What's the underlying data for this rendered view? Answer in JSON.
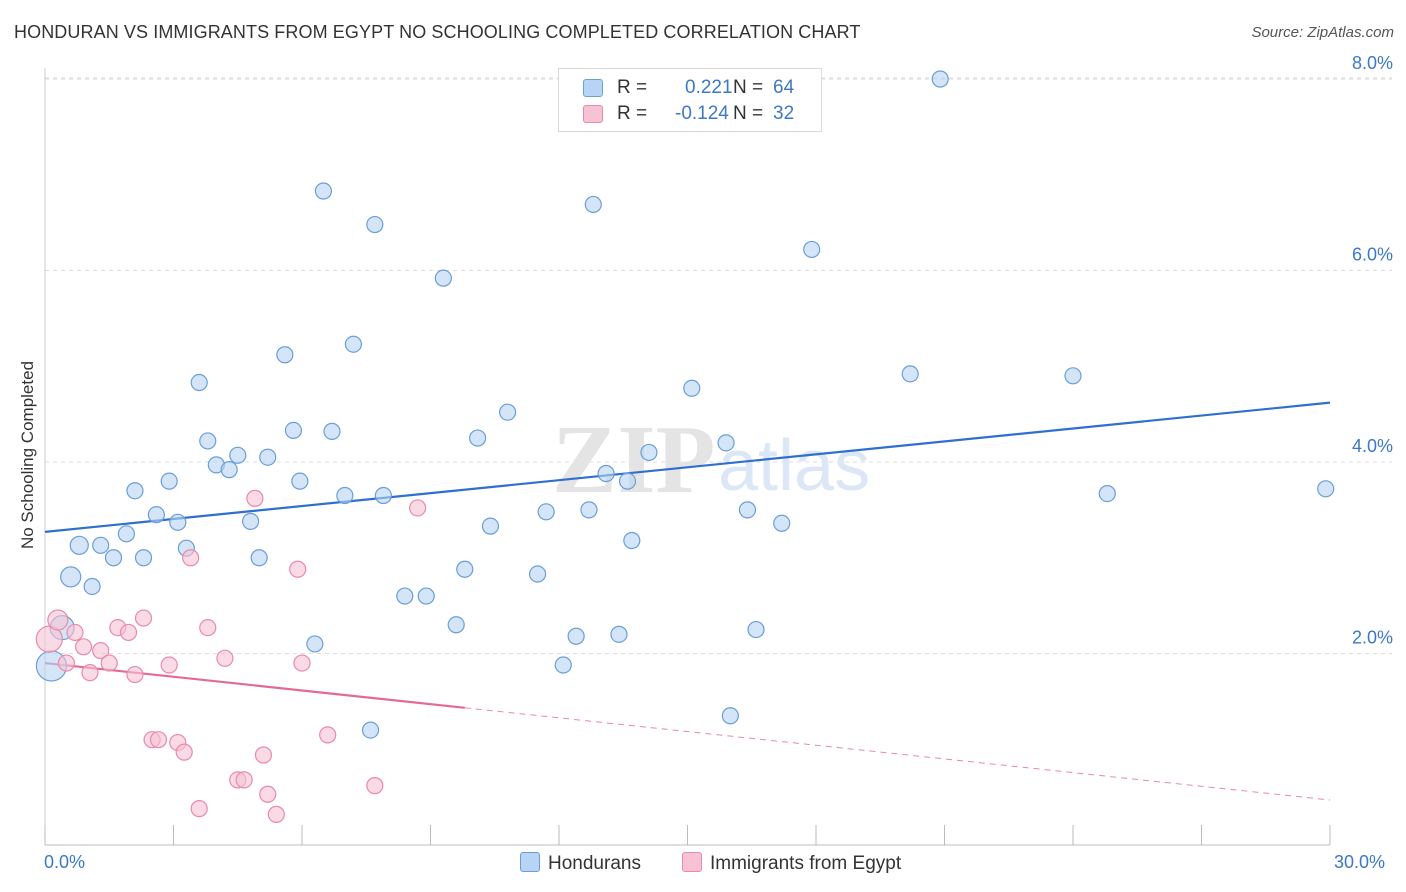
{
  "header": {
    "title": "HONDURAN VS IMMIGRANTS FROM EGYPT NO SCHOOLING COMPLETED CORRELATION CHART",
    "source": "Source: ZipAtlas.com"
  },
  "legend_top": {
    "hondurans": {
      "r_label": "R =",
      "r_value": "0.221",
      "n_label": "N =",
      "n_value": "64"
    },
    "egypt": {
      "r_label": "R =",
      "r_value": "-0.124",
      "n_label": "N =",
      "n_value": "32"
    }
  },
  "colors": {
    "blue_fill": "#b8d4f4",
    "blue_stroke": "#6a9ed8",
    "blue_line": "#2f6fd0",
    "pink_fill": "#f7c3d4",
    "pink_stroke": "#e88aa8",
    "pink_line": "#e36a96",
    "axis_text": "#3c78c8",
    "grid": "#dddddd"
  },
  "watermark": {
    "zip": "ZIP",
    "atlas": "atlas"
  },
  "chart_data": {
    "type": "scatter",
    "title": "HONDURAN VS IMMIGRANTS FROM EGYPT NO SCHOOLING COMPLETED CORRELATION CHART",
    "xlabel": "",
    "ylabel": "No Schooling Completed",
    "xlim": [
      0,
      30
    ],
    "ylim": [
      0,
      8.3
    ],
    "x_tick_labels": [
      "0.0%",
      "30.0%"
    ],
    "y_ticks": [
      2,
      4,
      6,
      8
    ],
    "y_tick_labels": [
      "2.0%",
      "4.0%",
      "6.0%",
      "8.0%"
    ],
    "grid": true,
    "series": [
      {
        "name": "Hondurans",
        "r": 0.221,
        "n": 64,
        "trend": {
          "x": [
            0,
            30
          ],
          "y": [
            3.27,
            4.62
          ],
          "style": "solid"
        },
        "points": [
          {
            "x": 0.15,
            "y": 1.87,
            "s": 15
          },
          {
            "x": 0.4,
            "y": 2.27,
            "s": 12
          },
          {
            "x": 0.6,
            "y": 2.8,
            "s": 10
          },
          {
            "x": 0.8,
            "y": 3.13,
            "s": 9
          },
          {
            "x": 1.1,
            "y": 2.7,
            "s": 8
          },
          {
            "x": 1.3,
            "y": 3.13,
            "s": 8
          },
          {
            "x": 1.6,
            "y": 3.0,
            "s": 8
          },
          {
            "x": 1.9,
            "y": 3.25,
            "s": 8
          },
          {
            "x": 2.1,
            "y": 3.7,
            "s": 8
          },
          {
            "x": 2.3,
            "y": 3.0,
            "s": 8
          },
          {
            "x": 2.6,
            "y": 3.45,
            "s": 8
          },
          {
            "x": 2.9,
            "y": 3.8,
            "s": 8
          },
          {
            "x": 3.1,
            "y": 3.37,
            "s": 8
          },
          {
            "x": 3.3,
            "y": 3.1,
            "s": 8
          },
          {
            "x": 3.6,
            "y": 4.83,
            "s": 8
          },
          {
            "x": 3.8,
            "y": 4.22,
            "s": 8
          },
          {
            "x": 4.0,
            "y": 3.97,
            "s": 8
          },
          {
            "x": 4.3,
            "y": 3.92,
            "s": 8
          },
          {
            "x": 4.5,
            "y": 4.07,
            "s": 8
          },
          {
            "x": 4.8,
            "y": 3.38,
            "s": 8
          },
          {
            "x": 5.0,
            "y": 3.0,
            "s": 8
          },
          {
            "x": 5.2,
            "y": 4.05,
            "s": 8
          },
          {
            "x": 5.6,
            "y": 5.12,
            "s": 8
          },
          {
            "x": 5.8,
            "y": 4.33,
            "s": 8
          },
          {
            "x": 5.95,
            "y": 3.8,
            "s": 8
          },
          {
            "x": 6.3,
            "y": 2.1,
            "s": 8
          },
          {
            "x": 6.5,
            "y": 6.83,
            "s": 8
          },
          {
            "x": 6.7,
            "y": 4.32,
            "s": 8
          },
          {
            "x": 7.0,
            "y": 3.65,
            "s": 8
          },
          {
            "x": 7.2,
            "y": 5.23,
            "s": 8
          },
          {
            "x": 7.6,
            "y": 1.2,
            "s": 8
          },
          {
            "x": 7.7,
            "y": 6.48,
            "s": 8
          },
          {
            "x": 7.9,
            "y": 3.65,
            "s": 8
          },
          {
            "x": 8.4,
            "y": 2.6,
            "s": 8
          },
          {
            "x": 8.9,
            "y": 2.6,
            "s": 8
          },
          {
            "x": 9.3,
            "y": 5.92,
            "s": 8
          },
          {
            "x": 9.6,
            "y": 2.3,
            "s": 8
          },
          {
            "x": 9.8,
            "y": 2.88,
            "s": 8
          },
          {
            "x": 10.1,
            "y": 4.25,
            "s": 8
          },
          {
            "x": 10.4,
            "y": 3.33,
            "s": 8
          },
          {
            "x": 10.8,
            "y": 4.52,
            "s": 8
          },
          {
            "x": 11.5,
            "y": 2.83,
            "s": 8
          },
          {
            "x": 11.7,
            "y": 3.48,
            "s": 8
          },
          {
            "x": 12.1,
            "y": 1.88,
            "s": 8
          },
          {
            "x": 12.4,
            "y": 2.18,
            "s": 8
          },
          {
            "x": 12.7,
            "y": 3.5,
            "s": 8
          },
          {
            "x": 12.8,
            "y": 6.69,
            "s": 8
          },
          {
            "x": 13.1,
            "y": 3.88,
            "s": 8
          },
          {
            "x": 13.4,
            "y": 2.2,
            "s": 8
          },
          {
            "x": 13.6,
            "y": 3.8,
            "s": 8
          },
          {
            "x": 13.7,
            "y": 3.18,
            "s": 8
          },
          {
            "x": 14.1,
            "y": 4.1,
            "s": 8
          },
          {
            "x": 15.1,
            "y": 4.77,
            "s": 8
          },
          {
            "x": 15.9,
            "y": 4.2,
            "s": 8
          },
          {
            "x": 16.0,
            "y": 1.35,
            "s": 8
          },
          {
            "x": 16.4,
            "y": 3.5,
            "s": 8
          },
          {
            "x": 16.6,
            "y": 2.25,
            "s": 8
          },
          {
            "x": 17.2,
            "y": 3.36,
            "s": 8
          },
          {
            "x": 17.9,
            "y": 6.22,
            "s": 8
          },
          {
            "x": 20.2,
            "y": 4.92,
            "s": 8
          },
          {
            "x": 20.9,
            "y": 8.0,
            "s": 8
          },
          {
            "x": 24.0,
            "y": 4.9,
            "s": 8
          },
          {
            "x": 24.8,
            "y": 3.67,
            "s": 8
          },
          {
            "x": 29.9,
            "y": 3.72,
            "s": 8
          }
        ]
      },
      {
        "name": "Immigrants from Egypt",
        "r": -0.124,
        "n": 32,
        "trend": {
          "x": [
            0,
            30
          ],
          "y": [
            1.9,
            0.47
          ],
          "solid_until_x": 9.8
        },
        "points": [
          {
            "x": 0.1,
            "y": 2.15,
            "s": 13
          },
          {
            "x": 0.3,
            "y": 2.35,
            "s": 10
          },
          {
            "x": 0.5,
            "y": 1.9,
            "s": 8
          },
          {
            "x": 0.7,
            "y": 2.22,
            "s": 8
          },
          {
            "x": 0.9,
            "y": 2.07,
            "s": 8
          },
          {
            "x": 1.05,
            "y": 1.8,
            "s": 8
          },
          {
            "x": 1.3,
            "y": 2.03,
            "s": 8
          },
          {
            "x": 1.5,
            "y": 1.9,
            "s": 8
          },
          {
            "x": 1.7,
            "y": 2.27,
            "s": 8
          },
          {
            "x": 1.95,
            "y": 2.22,
            "s": 8
          },
          {
            "x": 2.1,
            "y": 1.78,
            "s": 8
          },
          {
            "x": 2.3,
            "y": 2.37,
            "s": 8
          },
          {
            "x": 2.5,
            "y": 1.1,
            "s": 8
          },
          {
            "x": 2.65,
            "y": 1.1,
            "s": 8
          },
          {
            "x": 2.9,
            "y": 1.88,
            "s": 8
          },
          {
            "x": 3.1,
            "y": 1.07,
            "s": 8
          },
          {
            "x": 3.25,
            "y": 0.97,
            "s": 8
          },
          {
            "x": 3.4,
            "y": 3.0,
            "s": 8
          },
          {
            "x": 3.6,
            "y": 0.38,
            "s": 8
          },
          {
            "x": 3.8,
            "y": 2.27,
            "s": 8
          },
          {
            "x": 4.2,
            "y": 1.95,
            "s": 8
          },
          {
            "x": 4.5,
            "y": 0.68,
            "s": 8
          },
          {
            "x": 4.65,
            "y": 0.68,
            "s": 8
          },
          {
            "x": 4.9,
            "y": 3.62,
            "s": 8
          },
          {
            "x": 5.1,
            "y": 0.94,
            "s": 8
          },
          {
            "x": 5.2,
            "y": 0.53,
            "s": 8
          },
          {
            "x": 5.4,
            "y": 0.32,
            "s": 8
          },
          {
            "x": 5.9,
            "y": 2.88,
            "s": 8
          },
          {
            "x": 6.0,
            "y": 1.9,
            "s": 8
          },
          {
            "x": 6.6,
            "y": 1.15,
            "s": 8
          },
          {
            "x": 7.7,
            "y": 0.62,
            "s": 8
          },
          {
            "x": 8.7,
            "y": 3.52,
            "s": 8
          }
        ]
      }
    ]
  },
  "bottom_legend": {
    "hondurans": "Hondurans",
    "egypt": "Immigrants from Egypt"
  }
}
